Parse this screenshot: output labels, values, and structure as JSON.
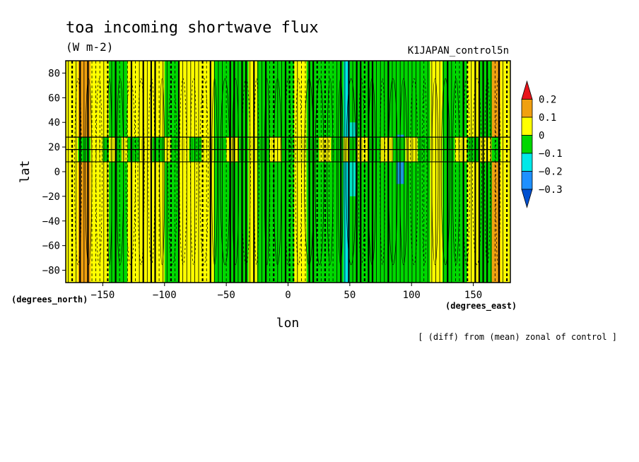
{
  "chart_data": {
    "type": "heatmap",
    "title": "toa incoming shortwave flux",
    "subtitle": "(W m-2)",
    "run_label": "K1JAPAN_control5n",
    "xlabel": "lon",
    "ylabel": "lat",
    "x_units": "(degrees_east)",
    "y_units": "(degrees_north)",
    "note": "[ (diff) from (mean) zonal of control ]",
    "xlim": [
      -180,
      180
    ],
    "ylim": [
      -90,
      90
    ],
    "x_ticks": [
      -150,
      -100,
      -50,
      0,
      50,
      100,
      150
    ],
    "y_ticks": [
      80,
      60,
      40,
      20,
      0,
      -20,
      -40,
      -60,
      -80
    ],
    "colorbar": {
      "levels": [
        0.2,
        0.1,
        0,
        -0.1,
        -0.2,
        -0.3
      ],
      "colors": [
        "#e8141b",
        "#f0a010",
        "#ffff00",
        "#00d700",
        "#00e8e8",
        "#1e90ff",
        "#0050d0"
      ]
    },
    "columns": [
      {
        "x0": -180,
        "x1": -170,
        "v": 0.05
      },
      {
        "x0": -170,
        "x1": -160,
        "v": 0.12
      },
      {
        "x0": -160,
        "x1": -150,
        "v": 0.05
      },
      {
        "x0": -150,
        "x1": -145,
        "v": 0.02
      },
      {
        "x0": -145,
        "x1": -140,
        "v": -0.05
      },
      {
        "x0": -140,
        "x1": -135,
        "v": -0.08
      },
      {
        "x0": -135,
        "x1": -130,
        "v": -0.03
      },
      {
        "x0": -130,
        "x1": -120,
        "v": 0.04
      },
      {
        "x0": -120,
        "x1": -110,
        "v": 0.06
      },
      {
        "x0": -110,
        "x1": -100,
        "v": 0.03
      },
      {
        "x0": -100,
        "x1": -95,
        "v": -0.04
      },
      {
        "x0": -95,
        "x1": -88,
        "v": -0.07
      },
      {
        "x0": -88,
        "x1": -80,
        "v": 0.03
      },
      {
        "x0": -80,
        "x1": -70,
        "v": 0.05
      },
      {
        "x0": -70,
        "x1": -60,
        "v": 0.02
      },
      {
        "x0": -60,
        "x1": -50,
        "v": -0.05
      },
      {
        "x0": -50,
        "x1": -40,
        "v": -0.07
      },
      {
        "x0": -40,
        "x1": -32,
        "v": -0.03
      },
      {
        "x0": -32,
        "x1": -25,
        "v": 0.03
      },
      {
        "x0": -25,
        "x1": -15,
        "v": -0.04
      },
      {
        "x0": -15,
        "x1": -5,
        "v": -0.06
      },
      {
        "x0": -5,
        "x1": 5,
        "v": -0.05
      },
      {
        "x0": 5,
        "x1": 15,
        "v": 0.04
      },
      {
        "x0": 15,
        "x1": 25,
        "v": -0.05
      },
      {
        "x0": 25,
        "x1": 35,
        "v": -0.08
      },
      {
        "x0": 35,
        "x1": 45,
        "v": -0.06
      },
      {
        "x0": 45,
        "x1": 50,
        "v": -0.12
      },
      {
        "x0": 50,
        "x1": 55,
        "v": -0.09
      },
      {
        "x0": 55,
        "x1": 65,
        "v": -0.06
      },
      {
        "x0": 65,
        "x1": 75,
        "v": -0.07
      },
      {
        "x0": 75,
        "x1": 85,
        "v": -0.04
      },
      {
        "x0": 85,
        "x1": 95,
        "v": -0.09
      },
      {
        "x0": 95,
        "x1": 105,
        "v": -0.05
      },
      {
        "x0": 105,
        "x1": 115,
        "v": -0.06
      },
      {
        "x0": 115,
        "x1": 125,
        "v": 0.04
      },
      {
        "x0": 125,
        "x1": 135,
        "v": -0.04
      },
      {
        "x0": 135,
        "x1": 145,
        "v": -0.05
      },
      {
        "x0": 145,
        "x1": 155,
        "v": 0.03
      },
      {
        "x0": 155,
        "x1": 165,
        "v": -0.03
      },
      {
        "x0": 165,
        "x1": 172,
        "v": 0.12
      },
      {
        "x0": 172,
        "x1": 180,
        "v": 0.05
      }
    ],
    "band": {
      "lat0": 8,
      "lat1": 28
    },
    "low_patch": {
      "x0": 47,
      "x1": 55,
      "lat0": -20,
      "lat1": 40,
      "v": -0.15
    },
    "low_patch2": {
      "x0": 88,
      "x1": 94,
      "lat0": -10,
      "lat1": 30,
      "v": -0.25
    }
  }
}
